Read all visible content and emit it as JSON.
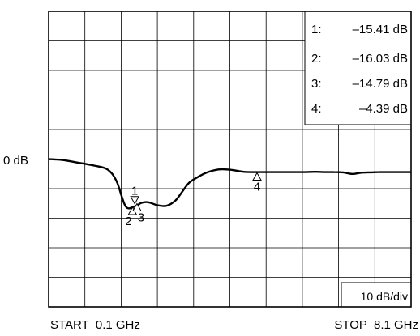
{
  "chart_data": {
    "type": "line",
    "title": "",
    "xlabel": "",
    "ylabel": "",
    "x_start_label": "START  0.1 GHz",
    "x_stop_label": "STOP  8.1 GHz",
    "xlim": [
      0.1,
      8.1
    ],
    "x_unit": "GHz",
    "y_reference_label": "0 dB",
    "y_scale_label": "10 dB/div",
    "ylim": [
      -50,
      50
    ],
    "grid": true,
    "grid_divisions": {
      "x": 10,
      "y": 10
    },
    "series": [
      {
        "x": [
          0.1,
          0.4,
          0.75,
          1.1,
          1.4,
          1.6,
          1.8,
          2.0,
          2.15,
          2.3,
          2.5,
          2.7,
          2.9,
          3.05,
          3.2,
          3.4,
          3.6,
          3.85,
          4.1,
          4.4,
          4.6,
          4.8,
          5.1,
          5.4,
          5.7,
          6.0,
          6.2,
          6.4,
          6.6,
          6.8,
          7.0,
          7.2,
          7.4,
          7.6,
          7.8,
          8.1
        ],
        "y": [
          0.0,
          -0.3,
          -1.2,
          -2.2,
          -3.5,
          -7.5,
          -16.0,
          -16.0,
          -14.8,
          -14.6,
          -15.6,
          -15.8,
          -14.0,
          -11.0,
          -8.0,
          -6.0,
          -4.5,
          -3.5,
          -3.6,
          -4.3,
          -4.4,
          -4.4,
          -4.4,
          -4.4,
          -4.4,
          -4.3,
          -4.4,
          -4.4,
          -4.5,
          -5.0,
          -4.6,
          -4.5,
          -4.4,
          -4.4,
          -4.4,
          -4.4
        ]
      }
    ],
    "markers": [
      {
        "label": "1",
        "x": 2.0,
        "y": -15.41,
        "pointer": "down"
      },
      {
        "label": "2",
        "x": 1.95,
        "y": -16.03,
        "pointer": "up"
      },
      {
        "label": "3",
        "x": 2.05,
        "y": -14.79,
        "pointer": "up"
      },
      {
        "label": "4",
        "x": 4.7,
        "y": -4.39,
        "pointer": "up"
      }
    ],
    "marker_readouts": [
      {
        "id": "1:",
        "value": "–15.41 dB"
      },
      {
        "id": "2:",
        "value": "–16.03 dB"
      },
      {
        "id": "3:",
        "value": "–14.79 dB"
      },
      {
        "id": "4:",
        "value": "–4.39 dB"
      }
    ]
  }
}
